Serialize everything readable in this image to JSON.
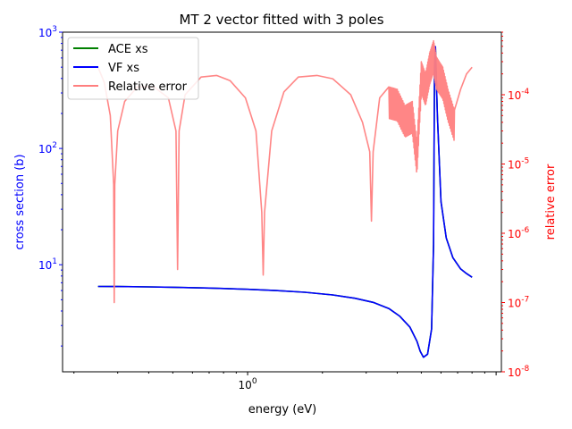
{
  "chart_data": {
    "type": "line",
    "title": "MT 2 vector fitted with 3 poles",
    "xlabel": "energy (eV)",
    "ylabel_left": "cross section (b)",
    "ylabel_right": "relative error",
    "x_scale": "log",
    "y_left_scale": "log",
    "y_right_scale": "log",
    "xlim": [
      0.18,
      10.5
    ],
    "ylim_left": [
      1.2,
      1000
    ],
    "ylim_right": [
      1e-08,
      0.0008
    ],
    "x_ticks": [
      {
        "value": 1,
        "label": "10^0"
      }
    ],
    "y_left_ticks": [
      {
        "value": 10,
        "label": "10^1"
      },
      {
        "value": 100,
        "label": "10^2"
      },
      {
        "value": 1000,
        "label": "10^3"
      }
    ],
    "y_right_ticks": [
      {
        "value": 1e-08,
        "label": "10^-8"
      },
      {
        "value": 1e-07,
        "label": "10^-7"
      },
      {
        "value": 1e-06,
        "label": "10^-6"
      },
      {
        "value": 1e-05,
        "label": "10^-5"
      },
      {
        "value": 0.0001,
        "label": "10^-4"
      }
    ],
    "legend": {
      "position": "top-left",
      "entries": [
        {
          "label": "ACE xs",
          "color": "#008000"
        },
        {
          "label": "VF xs",
          "color": "#0000ff"
        },
        {
          "label": "Relative error",
          "color": "#ff7f7f"
        }
      ]
    },
    "colors": {
      "left_axis": "#0000ff",
      "right_axis": "#ff0000"
    },
    "series": [
      {
        "name": "VF xs",
        "axis": "left",
        "color": "#0000ff",
        "x": [
          0.25,
          0.3,
          0.4,
          0.5,
          0.7,
          1.0,
          1.3,
          1.7,
          2.2,
          2.7,
          3.2,
          3.7,
          4.1,
          4.5,
          4.8,
          4.95,
          5.1,
          5.3,
          5.5,
          5.6,
          5.65,
          5.7,
          5.8,
          6.0,
          6.3,
          6.7,
          7.2,
          7.6,
          8.0
        ],
        "y": [
          6.5,
          6.49,
          6.45,
          6.4,
          6.3,
          6.15,
          6.0,
          5.8,
          5.5,
          5.15,
          4.75,
          4.2,
          3.6,
          2.9,
          2.2,
          1.8,
          1.6,
          1.7,
          2.8,
          15,
          500,
          750,
          200,
          35,
          17,
          11.5,
          9.2,
          8.4,
          7.8
        ]
      },
      {
        "name": "ACE xs",
        "axis": "left",
        "color": "#008000",
        "x": [
          0.25,
          0.3,
          0.4,
          0.5,
          0.7,
          1.0,
          1.3,
          1.7,
          2.2,
          2.7,
          3.2,
          3.7,
          4.1,
          4.5,
          4.8,
          4.95,
          5.1,
          5.3,
          5.5,
          5.6,
          5.65,
          5.7,
          5.8,
          6.0,
          6.3,
          6.7,
          7.2,
          7.6,
          8.0
        ],
        "y": [
          6.5,
          6.49,
          6.45,
          6.4,
          6.3,
          6.15,
          6.0,
          5.8,
          5.5,
          5.15,
          4.75,
          4.2,
          3.6,
          2.9,
          2.2,
          1.8,
          1.6,
          1.7,
          2.8,
          15,
          500,
          750,
          200,
          35,
          17,
          11.5,
          9.2,
          8.4,
          7.8
        ]
      },
      {
        "name": "Relative error",
        "axis": "right",
        "color": "#ff7f7f",
        "note_points": "smooth trend; high-frequency oscillation between 3.7 and 7.0 eV",
        "x": [
          0.25,
          0.265,
          0.28,
          0.289,
          0.2905,
          0.292,
          0.3,
          0.32,
          0.36,
          0.42,
          0.48,
          0.515,
          0.5225,
          0.53,
          0.56,
          0.65,
          0.75,
          0.85,
          0.98,
          1.08,
          1.14,
          1.155,
          1.17,
          1.25,
          1.4,
          1.6,
          1.9,
          2.2,
          2.6,
          2.9,
          3.1,
          3.15,
          3.2,
          3.4,
          3.7,
          4.0,
          4.3,
          4.6,
          4.8,
          5.0,
          5.2,
          5.4,
          5.6,
          5.75,
          5.9,
          6.1,
          6.4,
          6.8,
          7.2,
          7.6,
          8.0
        ],
        "y": [
          0.00025,
          0.00015,
          5e-05,
          5e-06,
          1e-07,
          5e-06,
          3e-05,
          8e-05,
          0.00013,
          0.00013,
          9e-05,
          3e-05,
          3e-07,
          3e-05,
          0.0001,
          0.00018,
          0.00019,
          0.00016,
          9e-05,
          3e-05,
          2e-06,
          2.5e-07,
          2e-06,
          3e-05,
          0.00011,
          0.00018,
          0.00019,
          0.00017,
          0.0001,
          4e-05,
          1.5e-05,
          1.5e-06,
          1.5e-05,
          9e-05,
          0.00013,
          0.00012,
          7e-05,
          8e-05,
          2e-05,
          0.0003,
          0.0002,
          0.0004,
          0.0006,
          0.00035,
          0.0003,
          0.00025,
          0.00012,
          6e-05,
          0.00012,
          0.0002,
          0.00025
        ]
      }
    ]
  }
}
